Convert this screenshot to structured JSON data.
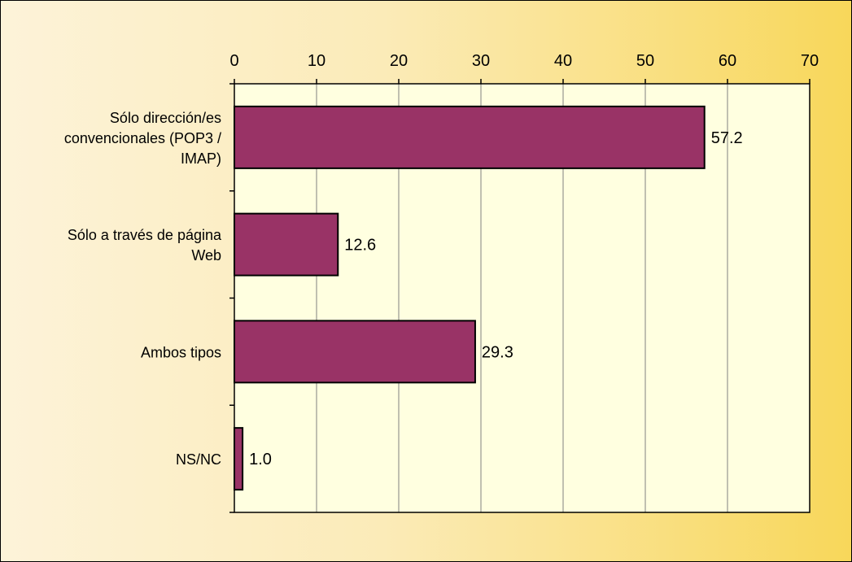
{
  "chart_data": {
    "type": "bar",
    "orientation": "horizontal",
    "categories": [
      [
        "Sólo dirección/es",
        "convencionales (POP3 /",
        "IMAP)"
      ],
      [
        "Sólo a través de página",
        "Web"
      ],
      [
        "Ambos tipos"
      ],
      [
        "NS/NC"
      ]
    ],
    "values": [
      57.2,
      12.6,
      29.3,
      1.0
    ],
    "value_labels": [
      "57.2",
      "12.6",
      "29.3",
      "1.0"
    ],
    "xlim": [
      0,
      70
    ],
    "xticks": [
      0,
      10,
      20,
      30,
      40,
      50,
      60,
      70
    ],
    "x_axis_position": "top",
    "grid": true,
    "legend": "none",
    "colors": {
      "bar_fill": "#993366",
      "bar_stroke": "#000000",
      "plot_background": "#FFFFE0",
      "page_gradient_start": "#FDF3D9",
      "page_gradient_end": "#F8D75A",
      "gridline": "#808080"
    }
  }
}
